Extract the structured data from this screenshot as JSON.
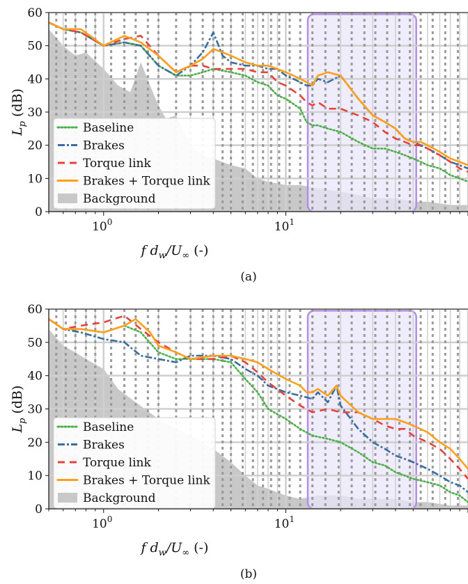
{
  "figure": {
    "captions": [
      "(a)",
      "(b)"
    ]
  },
  "colors": {
    "baseline": "#4daf4a",
    "brakes": "#3a6e9f",
    "torque": "#e8413c",
    "combined": "#ff9f1c",
    "background": "#c8c8c8",
    "highlight_fill": "#e9e6fb",
    "highlight_stroke": "#b48ee6",
    "major_grid": "#cfcfcf",
    "dotted_lines": "#9a9a9a"
  },
  "chart_data": [
    {
      "type": "line",
      "panel": "(a)",
      "xlabel": "f d_w/U_∞ (-)",
      "ylabel": "L_p (dB)",
      "xscale": "log",
      "xlim": [
        0.5,
        100
      ],
      "ylim": [
        0,
        60
      ],
      "yticks": [
        0,
        10,
        20,
        30,
        40,
        50,
        60
      ],
      "xtick_labels": [
        "10^0",
        "10^1"
      ],
      "grid": "major horizontal + vertical, dotted harmonic verticals",
      "legend_position": "lower-left",
      "highlight_band": {
        "x": [
          13.2,
          52
        ],
        "y": [
          0,
          59.5
        ]
      },
      "dotted_vlines": [
        0.55,
        0.62,
        0.7,
        0.8,
        0.9,
        1.1,
        1.3,
        1.5,
        1.75,
        2.0,
        2.5,
        3.0,
        3.5,
        4.0,
        4.5,
        5.0,
        5.8,
        6.6,
        7.5,
        8.3,
        9.2,
        10.5,
        12.0,
        14.0,
        16.5,
        19.5,
        23.0,
        27.0,
        31.0,
        36.0,
        42.0,
        48.0,
        55.0,
        64.0,
        75.0,
        88.0
      ],
      "series": [
        {
          "name": "Baseline",
          "style": "dotted",
          "x": [
            0.5,
            0.6,
            0.75,
            1,
            1.3,
            1.6,
            2,
            2.5,
            3,
            3.5,
            4,
            5,
            6,
            7,
            8,
            9,
            10,
            12,
            13,
            14,
            15,
            17,
            20,
            25,
            30,
            35,
            40,
            45,
            50,
            55,
            60,
            70,
            80,
            90,
            100
          ],
          "y": [
            57,
            55,
            54,
            50,
            51,
            50,
            44,
            41,
            41,
            42,
            43,
            42,
            41,
            39,
            38,
            35,
            34,
            31,
            27,
            26,
            26,
            25,
            24,
            21,
            19,
            19,
            18,
            17,
            16,
            15,
            14,
            13,
            11,
            10,
            9
          ]
        },
        {
          "name": "Brakes",
          "style": "dashed",
          "x": [
            0.5,
            0.6,
            0.75,
            1,
            1.3,
            1.6,
            2,
            2.5,
            3,
            3.5,
            4,
            4.5,
            5,
            6,
            7,
            8,
            9,
            10,
            11,
            12,
            13,
            14,
            15,
            17,
            20,
            25,
            30,
            35,
            40,
            45,
            50,
            55,
            60,
            70,
            80,
            90,
            100
          ],
          "y": [
            57,
            55,
            54,
            50,
            51,
            50,
            44,
            41,
            44,
            48,
            54,
            47,
            45,
            44,
            44,
            43,
            43,
            41,
            40,
            39,
            38,
            38,
            40,
            39,
            41,
            34,
            29,
            27,
            25,
            22,
            21,
            20,
            19,
            17,
            15,
            14,
            13
          ]
        },
        {
          "name": "Torque link",
          "style": "dashed",
          "x": [
            0.5,
            0.6,
            0.75,
            1,
            1.3,
            1.6,
            2,
            2.5,
            3,
            3.5,
            4,
            5,
            6,
            7,
            8,
            9,
            10,
            12,
            13,
            14,
            15,
            17,
            20,
            25,
            30,
            35,
            40,
            45,
            50,
            55,
            60,
            70,
            80,
            90,
            100
          ],
          "y": [
            57,
            55,
            54,
            50,
            52,
            53,
            47,
            42,
            44,
            44,
            43,
            43,
            43,
            42,
            42,
            39,
            38,
            35,
            33,
            32,
            33,
            31,
            31,
            29,
            27,
            24,
            22,
            21,
            20,
            20,
            19,
            17,
            15,
            13,
            12
          ]
        },
        {
          "name": "Brakes + Torque link",
          "style": "solid",
          "x": [
            0.5,
            0.6,
            0.75,
            1,
            1.3,
            1.6,
            2,
            2.5,
            3,
            3.5,
            4,
            4.5,
            5,
            6,
            7,
            8,
            9,
            10,
            11,
            12,
            13,
            14,
            15,
            17,
            20,
            25,
            30,
            35,
            40,
            45,
            50,
            55,
            60,
            70,
            80,
            90,
            100
          ],
          "y": [
            57,
            55,
            55,
            50,
            53,
            51,
            47,
            42,
            44,
            46,
            49,
            48,
            47,
            45,
            44,
            44,
            43,
            42,
            41,
            40,
            39,
            38,
            41,
            42,
            41,
            34,
            29,
            27,
            25,
            22,
            21,
            21,
            20,
            18,
            16,
            15,
            14
          ]
        }
      ],
      "background_noise": {
        "name": "Background",
        "x": [
          0.5,
          0.6,
          0.7,
          0.8,
          1,
          1.2,
          1.4,
          1.6,
          1.8,
          2,
          2.2,
          2.5,
          3,
          3.5,
          4,
          5,
          6,
          7,
          8,
          10,
          12,
          15,
          20,
          25,
          30,
          40,
          50,
          60,
          80,
          100
        ],
        "y": [
          55,
          50,
          47,
          48,
          43,
          38,
          36,
          45,
          38,
          32,
          28,
          29,
          20,
          17,
          16,
          14,
          13,
          10,
          9,
          8,
          8,
          7,
          6,
          5,
          4,
          4,
          3,
          3,
          2,
          2
        ]
      }
    },
    {
      "type": "line",
      "panel": "(b)",
      "xlabel": "f d_w/U_∞ (-)",
      "ylabel": "L_p (dB)",
      "xscale": "log",
      "xlim": [
        0.5,
        100
      ],
      "ylim": [
        0,
        60
      ],
      "yticks": [
        0,
        10,
        20,
        30,
        40,
        50,
        60
      ],
      "xtick_labels": [
        "10^0",
        "10^1"
      ],
      "grid": "major horizontal + vertical, dotted harmonic verticals",
      "legend_position": "lower-left",
      "highlight_band": {
        "x": [
          13.2,
          52
        ],
        "y": [
          0,
          59.5
        ]
      },
      "dotted_vlines": [
        0.55,
        0.62,
        0.7,
        0.8,
        0.9,
        1.1,
        1.3,
        1.5,
        1.75,
        2.0,
        2.5,
        3.0,
        3.5,
        4.0,
        4.5,
        5.0,
        5.8,
        6.6,
        7.5,
        8.3,
        9.2,
        10.5,
        12.0,
        14.0,
        16.5,
        19.5,
        23.0,
        27.0,
        31.0,
        36.0,
        42.0,
        48.0,
        55.0,
        64.0,
        75.0,
        88.0
      ],
      "series": [
        {
          "name": "Baseline",
          "style": "dotted",
          "x": [
            0.5,
            0.6,
            0.75,
            1,
            1.3,
            1.6,
            2,
            2.5,
            3,
            4,
            5,
            6,
            7,
            8,
            10,
            12,
            14,
            17,
            20,
            25,
            30,
            35,
            40,
            45,
            50,
            60,
            70,
            80,
            90,
            100
          ],
          "y": [
            57,
            54,
            54,
            53,
            55,
            53,
            47,
            45,
            45,
            45,
            44,
            39,
            35,
            30,
            27,
            24,
            22,
            21,
            20,
            17,
            14,
            13,
            11,
            10,
            9,
            8,
            7,
            5,
            4,
            2
          ]
        },
        {
          "name": "Brakes",
          "style": "dashed",
          "x": [
            0.5,
            0.6,
            0.75,
            1,
            1.3,
            1.6,
            2,
            2.5,
            3,
            4,
            5,
            6,
            7,
            8,
            10,
            12,
            14,
            15,
            17,
            19,
            20,
            25,
            30,
            35,
            40,
            45,
            50,
            60,
            70,
            80,
            90,
            100
          ],
          "y": [
            57,
            54,
            53,
            51,
            50,
            46,
            45,
            44,
            46,
            46,
            45,
            42,
            40,
            37,
            35,
            34,
            33,
            35,
            32,
            37,
            31,
            24,
            20,
            18,
            16,
            15,
            14,
            12,
            10,
            8,
            7,
            5
          ]
        },
        {
          "name": "Torque link",
          "style": "dashed",
          "x": [
            0.5,
            0.6,
            0.75,
            1,
            1.3,
            1.6,
            2,
            2.5,
            3,
            4,
            5,
            6,
            7,
            8,
            10,
            12,
            14,
            17,
            20,
            25,
            30,
            35,
            40,
            45,
            50,
            60,
            70,
            80,
            90,
            100
          ],
          "y": [
            57,
            54,
            55,
            56,
            58,
            54,
            50,
            47,
            45,
            45,
            46,
            44,
            41,
            38,
            34,
            31,
            29,
            30,
            29,
            29,
            27,
            25,
            24,
            24,
            22,
            20,
            18,
            15,
            12,
            9
          ]
        },
        {
          "name": "Brakes + Torque link",
          "style": "solid",
          "x": [
            0.5,
            0.6,
            0.75,
            1,
            1.3,
            1.5,
            1.8,
            2,
            2.5,
            3,
            4,
            5,
            6,
            7,
            8,
            10,
            12,
            13,
            14,
            15,
            17,
            19,
            20,
            25,
            30,
            35,
            40,
            45,
            50,
            60,
            70,
            80,
            90,
            100
          ],
          "y": [
            57,
            54,
            54,
            53,
            55,
            57,
            53,
            49,
            47,
            45,
            46,
            46,
            45,
            44,
            42,
            39,
            37,
            35,
            35,
            36,
            34,
            37,
            34,
            29,
            27,
            27,
            27,
            26,
            25,
            23,
            20,
            18,
            15,
            12
          ]
        }
      ],
      "background_noise": {
        "name": "Background",
        "x": [
          0.5,
          0.6,
          0.7,
          0.8,
          1,
          1.2,
          1.5,
          2,
          2.5,
          3,
          4,
          5,
          6,
          7,
          8,
          10,
          12,
          15,
          20,
          25,
          30,
          40,
          50,
          60,
          80,
          100
        ],
        "y": [
          54,
          49,
          47,
          45,
          42,
          36,
          32,
          27,
          24,
          22,
          18,
          14,
          10,
          7,
          6,
          4,
          3,
          4,
          4,
          3,
          3,
          3,
          2,
          2,
          1,
          1
        ]
      }
    }
  ]
}
